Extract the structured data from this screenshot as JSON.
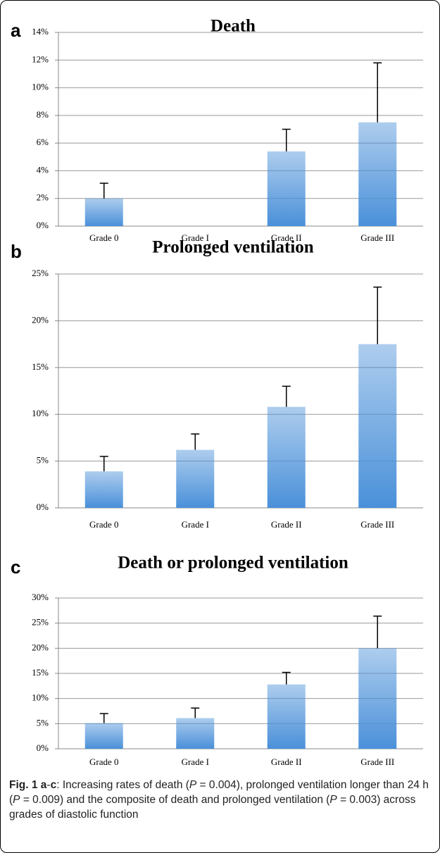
{
  "chart_data": [
    {
      "type": "bar",
      "panel": "a",
      "title": "Death",
      "categories": [
        "Grade 0",
        "Grade I",
        "Grade II",
        "Grade III"
      ],
      "values": [
        2.0,
        0,
        5.4,
        7.5
      ],
      "errors": [
        1.1,
        null,
        1.6,
        4.3
      ],
      "color": "#4a90d9",
      "ylim": [
        0,
        14
      ],
      "yticks": [
        {
          "value": 0,
          "label": "0%"
        },
        {
          "value": 2,
          "label": "2%"
        },
        {
          "value": 4,
          "label": "4%"
        },
        {
          "value": 6,
          "label": "6%"
        },
        {
          "value": 8,
          "label": "8%"
        },
        {
          "value": 10,
          "label": "10%"
        },
        {
          "value": 12,
          "label": "12%"
        },
        {
          "value": 14,
          "label": "14%"
        }
      ],
      "grid": true
    },
    {
      "type": "bar",
      "panel": "b",
      "title": "Prolonged ventilation",
      "categories": [
        "Grade 0",
        "Grade I",
        "Grade II",
        "Grade III"
      ],
      "values": [
        3.9,
        6.2,
        10.8,
        17.5
      ],
      "errors": [
        1.6,
        1.7,
        2.2,
        6.1
      ],
      "color": "#4a90d9",
      "ylim": [
        0,
        25
      ],
      "yticks": [
        {
          "value": 0,
          "label": "0%"
        },
        {
          "value": 5,
          "label": "5%"
        },
        {
          "value": 10,
          "label": "10%"
        },
        {
          "value": 15,
          "label": "15%"
        },
        {
          "value": 20,
          "label": "20%"
        },
        {
          "value": 25,
          "label": "25%"
        }
      ],
      "grid": true
    },
    {
      "type": "bar",
      "panel": "c",
      "title": "Death or prolonged ventilation",
      "categories": [
        "Grade 0",
        "Grade I",
        "Grade II",
        "Grade III"
      ],
      "values": [
        5.1,
        6.1,
        12.8,
        20.0
      ],
      "errors": [
        1.9,
        2.0,
        2.4,
        6.4
      ],
      "color": "#4a90d9",
      "ylim": [
        0,
        30
      ],
      "yticks": [
        {
          "value": 0,
          "label": "0%"
        },
        {
          "value": 5,
          "label": "5%"
        },
        {
          "value": 10,
          "label": "10%"
        },
        {
          "value": 15,
          "label": "15%"
        },
        {
          "value": 20,
          "label": "20%"
        },
        {
          "value": 25,
          "label": "25%"
        },
        {
          "value": 30,
          "label": "30%"
        }
      ],
      "grid": true
    }
  ],
  "caption": {
    "parts": [
      "Fig. 1",
      "a",
      "-",
      "c",
      ": Increasing rates of death (",
      "P",
      " = 0.004), prolonged ventilation longer than 24 h (",
      "P",
      " = 0.009) and the composite of death and prolonged ventilation (",
      "P",
      " = 0.003) across grades of diastolic function"
    ]
  }
}
